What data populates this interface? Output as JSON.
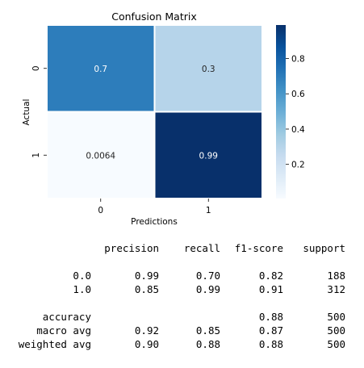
{
  "chart_data": {
    "type": "heatmap",
    "title": "Confusion Matrix",
    "xlabel": "Predictions",
    "ylabel": "Actual",
    "x_categories": [
      "0",
      "1"
    ],
    "y_categories": [
      "0",
      "1"
    ],
    "values": [
      [
        0.7,
        0.3
      ],
      [
        0.0064,
        0.99
      ]
    ],
    "annotations": [
      [
        "0.7",
        "0.3"
      ],
      [
        "0.0064",
        "0.99"
      ]
    ],
    "colormap": "Blues",
    "colorbar": {
      "range": [
        0.0064,
        0.99
      ],
      "ticks": [
        0.2,
        0.4,
        0.6,
        0.8
      ],
      "tick_labels": [
        "0.2",
        "0.4",
        "0.6",
        "0.8"
      ]
    }
  },
  "report": {
    "headers": [
      "precision",
      "recall",
      "f1-score",
      "support"
    ],
    "rows": [
      {
        "label": "0.0",
        "precision": "0.99",
        "recall": "0.70",
        "f1": "0.82",
        "support": "188"
      },
      {
        "label": "1.0",
        "precision": "0.85",
        "recall": "0.99",
        "f1": "0.91",
        "support": "312"
      },
      {
        "label": "accuracy",
        "precision": "",
        "recall": "",
        "f1": "0.88",
        "support": "500"
      },
      {
        "label": "macro avg",
        "precision": "0.92",
        "recall": "0.85",
        "f1": "0.87",
        "support": "500"
      },
      {
        "label": "weighted avg",
        "precision": "0.90",
        "recall": "0.88",
        "f1": "0.88",
        "support": "500"
      }
    ]
  }
}
